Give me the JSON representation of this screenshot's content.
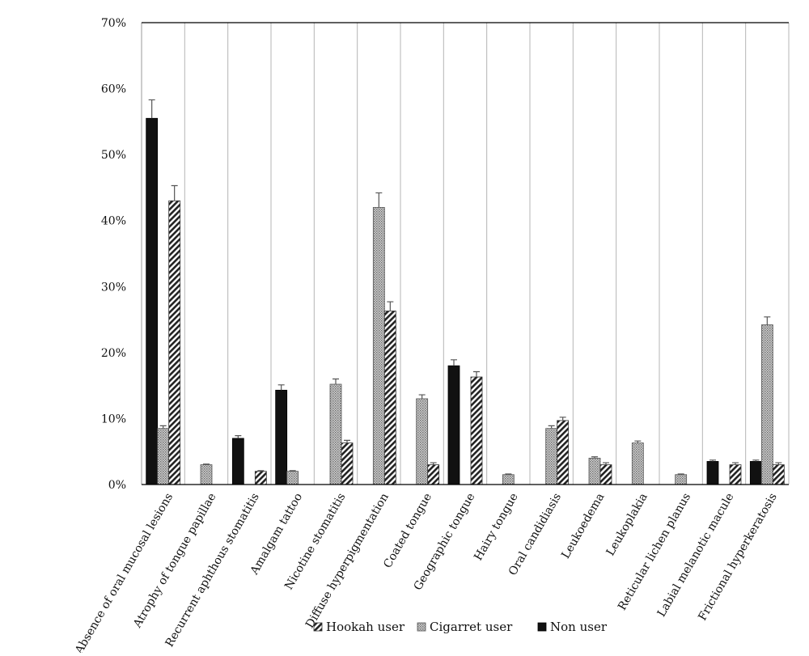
{
  "chart_data": {
    "type": "bar",
    "categories": [
      "Absence of oral mucosal lesions",
      "Atrophy of tongue papillae",
      "Recurrent aphthous stomatitis",
      "Amalgam tattoo",
      "Nicotine stomatitis",
      "Diffuse hyperpigmentation",
      "Coated tongue",
      "Geographic tongue",
      "Hairy tongue",
      "Oral candidiasis",
      "Leukoedema",
      "Leukoplakia",
      "Reticular lichen planus",
      "Labial melanotic macule",
      "Frictional hyperkeratosis"
    ],
    "series": [
      {
        "name": "Non user",
        "color": "#111111",
        "pattern": "solid",
        "values": [
          55.5,
          0,
          7.0,
          14.3,
          0,
          0,
          0,
          18.0,
          0,
          0,
          0,
          0,
          0,
          3.5,
          3.5
        ],
        "errors": [
          2.8,
          0,
          0.4,
          0.8,
          0,
          0,
          0,
          0.9,
          0,
          0,
          0,
          0,
          0,
          0.2,
          0.2
        ]
      },
      {
        "name": "Cigarret user",
        "color": "#9a9a9a",
        "pattern": "dotted",
        "values": [
          8.5,
          3.0,
          0,
          2.0,
          15.2,
          42.0,
          13.0,
          0,
          1.5,
          8.5,
          4.0,
          6.3,
          1.5,
          0,
          24.2
        ],
        "errors": [
          0.4,
          0.1,
          0,
          0.1,
          0.8,
          2.2,
          0.6,
          0,
          0.1,
          0.4,
          0.2,
          0.3,
          0.1,
          0,
          1.2
        ]
      },
      {
        "name": "Hookah user",
        "color": "#222222",
        "pattern": "hatched",
        "values": [
          43.0,
          0,
          2.0,
          0,
          6.3,
          26.3,
          3.0,
          16.3,
          0,
          9.7,
          3.0,
          0,
          0,
          3.0,
          3.0
        ],
        "errors": [
          2.3,
          0,
          0.1,
          0,
          0.4,
          1.4,
          0.3,
          0.8,
          0,
          0.5,
          0.3,
          0,
          0,
          0.3,
          0.3
        ]
      }
    ],
    "y_ticks": [
      "0%",
      "10%",
      "20%",
      "30%",
      "40%",
      "50%",
      "60%",
      "70%"
    ],
    "ylim": [
      0,
      70
    ],
    "legend": [
      "Hookah user",
      "Cigarret user",
      "Non user"
    ],
    "legend_position": "bottom",
    "grid": "vertical",
    "title": "",
    "xlabel": "",
    "ylabel": ""
  }
}
